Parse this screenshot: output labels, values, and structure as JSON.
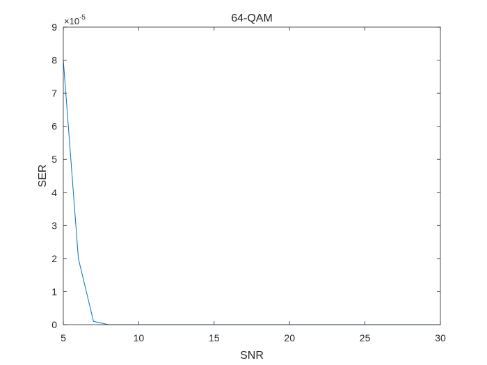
{
  "chart_data": {
    "type": "line",
    "title": "64-QAM",
    "xlabel": "SNR",
    "ylabel": "SER",
    "xlim": [
      5,
      30
    ],
    "ylim": [
      0,
      9
    ],
    "y_exponent_label": "×10",
    "y_exponent_power": "-5",
    "y_scale_factor": 1e-05,
    "xticks": [
      "5",
      "10",
      "15",
      "20",
      "25",
      "30"
    ],
    "yticks": [
      "0",
      "1",
      "2",
      "3",
      "4",
      "5",
      "6",
      "7",
      "8",
      "9"
    ],
    "grid": false,
    "series": [
      {
        "color": "#0072bd",
        "x": [
          5,
          6,
          7,
          8,
          9,
          10,
          11,
          12,
          13,
          14,
          15,
          16,
          17,
          18,
          19,
          20,
          21,
          22,
          23,
          24,
          25,
          26,
          27,
          28,
          29,
          30
        ],
        "y": [
          8.0,
          2.0,
          0.1,
          0,
          0,
          0,
          0,
          0,
          0,
          0,
          0,
          0,
          0,
          0,
          0,
          0,
          0,
          0,
          0,
          0,
          0,
          0,
          0,
          0,
          0,
          0
        ]
      }
    ]
  }
}
